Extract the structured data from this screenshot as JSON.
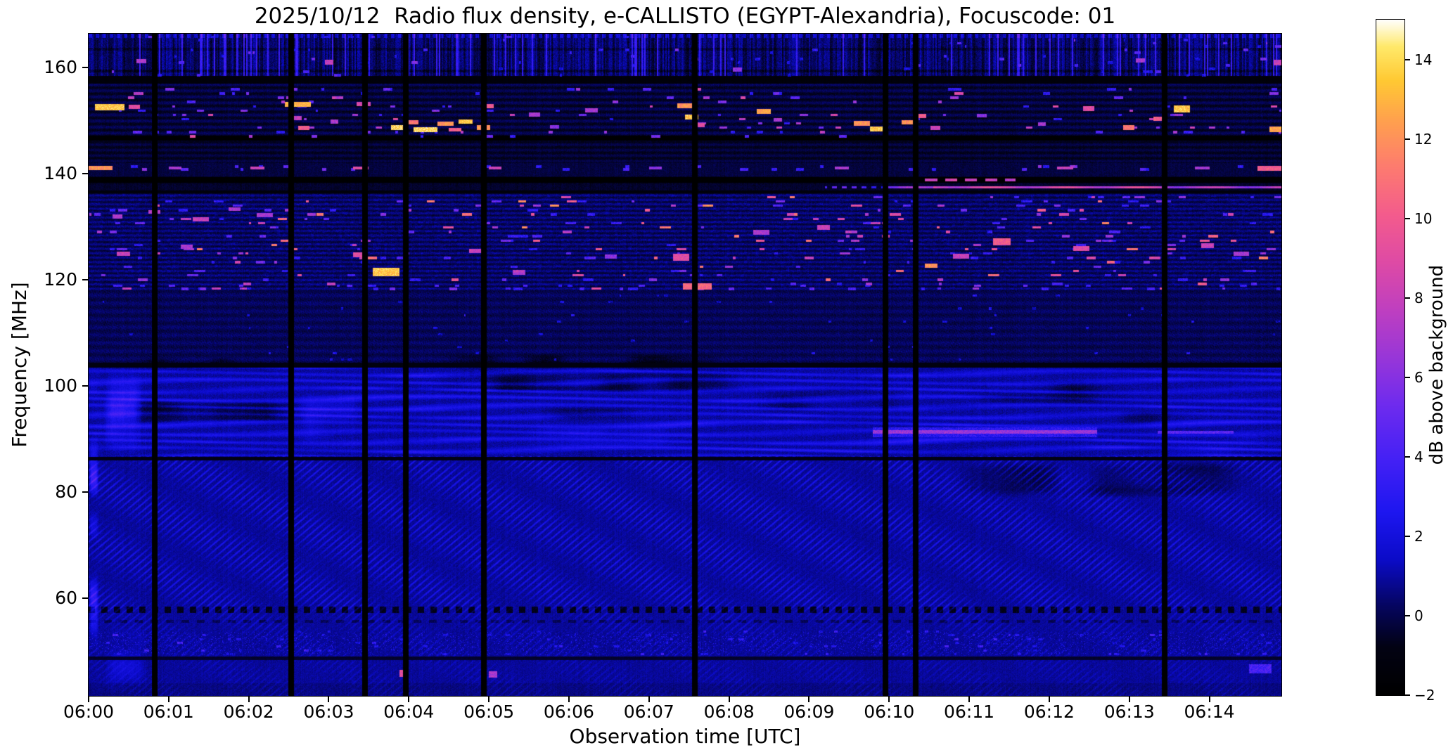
{
  "chart_data": {
    "type": "heatmap",
    "title": "2025/10/12  Radio flux density, e-CALLISTO (EGYPT-Alexandria), Focuscode: 01",
    "xlabel": "Observation time [UTC]",
    "ylabel": "Frequency [MHz]",
    "colorbar_label": "dB above background",
    "x_ticks": [
      "06:00",
      "06:01",
      "06:02",
      "06:03",
      "06:04",
      "06:05",
      "06:06",
      "06:07",
      "06:08",
      "06:09",
      "06:10",
      "06:11",
      "06:12",
      "06:13",
      "06:14"
    ],
    "x_range_minutes": [
      0,
      14.9
    ],
    "y_ticks": [
      160,
      140,
      120,
      100,
      80,
      60
    ],
    "y_range_mhz": [
      41.6,
      166.4
    ],
    "colorbar_ticks": [
      14,
      12,
      10,
      8,
      6,
      4,
      2,
      0,
      -2
    ],
    "color_range_db": [
      -2,
      15
    ],
    "colormap_stops": [
      [
        0.0,
        "#000000"
      ],
      [
        0.07,
        "#020213"
      ],
      [
        0.13,
        "#05055e"
      ],
      [
        0.2,
        "#0b0bc8"
      ],
      [
        0.27,
        "#1d16f0"
      ],
      [
        0.35,
        "#4521f5"
      ],
      [
        0.43,
        "#6f2bee"
      ],
      [
        0.5,
        "#9836d8"
      ],
      [
        0.57,
        "#bf3fc0"
      ],
      [
        0.64,
        "#de4aa5"
      ],
      [
        0.71,
        "#f35b8d"
      ],
      [
        0.78,
        "#fd7a70"
      ],
      [
        0.85,
        "#ffa04e"
      ],
      [
        0.91,
        "#ffc933"
      ],
      [
        0.96,
        "#ffe96a"
      ],
      [
        1.0,
        "#ffffff"
      ]
    ],
    "vertical_gaps_min": [
      0.83,
      2.53,
      3.45,
      3.96,
      4.94,
      7.57,
      9.95,
      10.33,
      13.44
    ],
    "gap_half_width_min": 0.035,
    "dark_lines": [
      [
        146.7,
        0.45,
        -2
      ],
      [
        138.8,
        0.55,
        -2
      ],
      [
        136.6,
        0.3,
        -1.4
      ],
      [
        103.9,
        0.45,
        -1.1
      ],
      [
        86.3,
        0.35,
        -1.0
      ],
      [
        48.7,
        0.3,
        -0.6
      ]
    ],
    "satellite_line": {
      "f": [
        137.2,
        137.65
      ],
      "segments": [
        [
          9.2,
          9.95,
          4,
          "dashed"
        ],
        [
          9.95,
          10.55,
          6,
          "solid"
        ],
        [
          10.55,
          13.5,
          8.2,
          "solid"
        ],
        [
          13.5,
          14.9,
          7,
          "solid"
        ]
      ]
    },
    "bursts": [
      [
        0.08,
        0.45,
        151.9,
        153.1,
        13.5
      ],
      [
        0.5,
        0.64,
        152.2,
        153.0,
        9
      ],
      [
        0.0,
        0.3,
        140.7,
        141.5,
        12
      ],
      [
        2.45,
        2.78,
        152.6,
        153.6,
        13
      ],
      [
        2.55,
        2.66,
        150.1,
        150.9,
        8
      ],
      [
        2.62,
        2.76,
        148.2,
        149.0,
        10
      ],
      [
        3.02,
        3.12,
        149.5,
        150.2,
        7
      ],
      [
        3.35,
        3.52,
        152.8,
        153.6,
        8.5
      ],
      [
        3.78,
        3.96,
        148.3,
        149.2,
        14
      ],
      [
        3.96,
        4.12,
        149.3,
        150.1,
        11
      ],
      [
        4.06,
        4.36,
        147.8,
        148.8,
        14
      ],
      [
        4.36,
        4.56,
        149.0,
        149.9,
        12
      ],
      [
        4.5,
        4.66,
        148.0,
        148.7,
        10
      ],
      [
        4.62,
        4.8,
        149.5,
        150.3,
        13.5
      ],
      [
        4.85,
        5.02,
        148.2,
        149.2,
        12
      ],
      [
        4.9,
        5.06,
        152.4,
        153.2,
        10
      ],
      [
        5.5,
        5.64,
        150.8,
        151.5,
        7
      ],
      [
        5.76,
        5.88,
        148.5,
        149.2,
        6
      ],
      [
        6.2,
        6.36,
        151.5,
        152.3,
        7
      ],
      [
        7.35,
        7.56,
        152.3,
        153.3,
        12
      ],
      [
        7.45,
        7.62,
        150.3,
        151.2,
        13.5
      ],
      [
        7.56,
        7.7,
        148.8,
        149.6,
        9
      ],
      [
        8.35,
        8.52,
        151.3,
        152.2,
        12.5
      ],
      [
        8.56,
        8.66,
        149.8,
        150.5,
        7
      ],
      [
        9.56,
        9.76,
        149.0,
        150.0,
        12
      ],
      [
        9.76,
        9.96,
        148.0,
        148.9,
        13.5
      ],
      [
        10.16,
        10.32,
        149.3,
        150.1,
        12
      ],
      [
        10.32,
        10.46,
        150.5,
        151.3,
        10
      ],
      [
        10.52,
        10.64,
        148.3,
        149.1,
        8
      ],
      [
        11.1,
        11.22,
        150.6,
        151.3,
        6
      ],
      [
        11.86,
        11.96,
        149.0,
        149.7,
        7
      ],
      [
        12.42,
        12.56,
        151.8,
        152.7,
        9
      ],
      [
        12.92,
        13.06,
        148.3,
        149.2,
        11
      ],
      [
        13.3,
        13.44,
        150.0,
        150.8,
        10
      ],
      [
        13.56,
        13.76,
        151.6,
        152.9,
        13.5
      ],
      [
        14.75,
        14.9,
        147.9,
        148.9,
        12.5
      ],
      [
        1.0,
        1.16,
        140.8,
        141.4,
        7
      ],
      [
        2.02,
        2.2,
        140.8,
        141.4,
        8
      ],
      [
        3.3,
        3.5,
        140.8,
        141.4,
        9
      ],
      [
        5.0,
        5.16,
        140.8,
        141.4,
        8
      ],
      [
        7.0,
        7.16,
        140.8,
        141.4,
        6
      ],
      [
        9.32,
        9.5,
        140.8,
        141.4,
        7
      ],
      [
        12.1,
        12.3,
        140.8,
        141.4,
        8
      ],
      [
        13.82,
        14.0,
        140.8,
        141.4,
        7
      ],
      [
        14.6,
        14.9,
        140.6,
        141.5,
        10
      ],
      [
        10.45,
        10.6,
        138.6,
        139.1,
        8
      ],
      [
        10.7,
        10.85,
        138.6,
        139.1,
        8.5
      ],
      [
        10.95,
        11.1,
        138.6,
        139.1,
        8
      ],
      [
        11.2,
        11.35,
        138.6,
        139.1,
        8
      ],
      [
        11.45,
        11.58,
        138.6,
        139.1,
        7.5
      ],
      [
        3.55,
        3.88,
        120.7,
        122.3,
        13.5
      ],
      [
        3.3,
        3.46,
        124.3,
        125.2,
        9
      ],
      [
        7.42,
        7.78,
        118.2,
        119.4,
        10.5
      ],
      [
        7.3,
        7.5,
        123.6,
        124.9,
        9
      ],
      [
        11.3,
        11.52,
        126.5,
        127.9,
        10
      ],
      [
        10.8,
        11.0,
        124.0,
        124.9,
        8
      ],
      [
        12.3,
        12.5,
        125.5,
        126.4,
        9
      ],
      [
        13.9,
        14.06,
        126.0,
        126.9,
        8
      ],
      [
        14.3,
        14.5,
        124.5,
        125.3,
        7
      ],
      [
        0.35,
        0.52,
        124.5,
        125.3,
        8
      ],
      [
        1.15,
        1.3,
        125.8,
        126.6,
        7
      ],
      [
        4.75,
        4.9,
        125.0,
        125.9,
        8
      ],
      [
        5.3,
        5.46,
        121.0,
        121.9,
        7
      ],
      [
        6.45,
        6.6,
        124.0,
        124.8,
        6
      ],
      [
        8.3,
        8.5,
        128.5,
        129.4,
        7
      ],
      [
        9.1,
        9.26,
        129.5,
        130.3,
        8
      ],
      [
        10.45,
        10.6,
        122.3,
        123.1,
        12
      ],
      [
        0.3,
        0.42,
        131.6,
        132.3,
        7
      ],
      [
        0.75,
        0.9,
        132.5,
        133.2,
        7.5
      ],
      [
        1.3,
        1.5,
        131.0,
        131.8,
        8
      ],
      [
        1.75,
        1.9,
        133.0,
        133.7,
        7
      ],
      [
        2.1,
        2.3,
        131.8,
        132.6,
        7
      ],
      [
        9.8,
        12.6,
        91.0,
        91.65,
        6.5
      ],
      [
        9.8,
        12.6,
        90.4,
        92.2,
        3
      ],
      [
        13.35,
        14.3,
        91.0,
        91.6,
        4.5
      ],
      [
        3.88,
        4.0,
        45.2,
        46.5,
        9
      ],
      [
        5.0,
        5.1,
        45.0,
        46.2,
        7
      ],
      [
        14.5,
        14.78,
        45.8,
        47.6,
        4
      ],
      [
        2.95,
        3.06,
        160.6,
        161.5,
        8
      ],
      [
        0.6,
        0.72,
        160.9,
        161.6,
        7
      ],
      [
        13.08,
        13.2,
        161.0,
        161.8,
        7
      ],
      [
        14.8,
        14.9,
        160.4,
        161.5,
        8
      ],
      [
        8.05,
        8.16,
        159.3,
        160.1,
        6
      ]
    ],
    "speckle_bands": [
      {
        "name": "airband",
        "t": [
          0,
          14.9
        ],
        "f": [
          118.4,
          135.8
        ],
        "rows": 0.82,
        "count": 320,
        "db": [
          3,
          12
        ],
        "w": [
          0.03,
          0.14
        ],
        "h": 0.45
      },
      {
        "name": "rfi-150",
        "t": [
          0,
          14.9
        ],
        "f": [
          147.1,
          155.9
        ],
        "rows": 0.8,
        "count": 150,
        "db": [
          3,
          9
        ],
        "w": [
          0.03,
          0.12
        ],
        "h": 0.5
      },
      {
        "name": "top-band",
        "t": [
          0,
          14.9
        ],
        "f": [
          158.6,
          165.9
        ],
        "rows": 0.6,
        "count": 90,
        "db": [
          2,
          6
        ],
        "w": [
          0.02,
          0.08
        ],
        "h": 0.5
      },
      {
        "name": "mid-quiet",
        "t": [
          0,
          14.9
        ],
        "f": [
          105,
          117
        ],
        "rows": 1.2,
        "count": 60,
        "db": [
          1.5,
          3.2
        ],
        "w": [
          0.02,
          0.06
        ],
        "h": 0.4
      },
      {
        "name": "low-52",
        "t": [
          0,
          14.9
        ],
        "f": [
          49.5,
          53.5
        ],
        "rows": 0.7,
        "count": 120,
        "db": [
          2,
          4
        ],
        "w": [
          0.02,
          0.07
        ],
        "h": 0.4
      },
      {
        "name": "row-118",
        "t": [
          0,
          14.9
        ],
        "f": [
          118.3,
          118.9
        ],
        "rows": 0.6,
        "count": 40,
        "db": [
          3,
          6
        ],
        "w": [
          0.04,
          0.12
        ],
        "h": 0.5
      },
      {
        "name": "row-141",
        "t": [
          0,
          14.9
        ],
        "f": [
          140.8,
          141.4
        ],
        "rows": 0.6,
        "count": 30,
        "db": [
          3,
          7
        ],
        "w": [
          0.04,
          0.1
        ],
        "h": 0.5
      }
    ],
    "dark_patches": [
      [
        0.4,
        2.7,
        92.5,
        97.5,
        1.8
      ],
      [
        4.3,
        8.2,
        98.5,
        103.4,
        1.5
      ],
      [
        10.8,
        14.85,
        79,
        86,
        1.5
      ],
      [
        8.3,
        10.3,
        95,
        99.5,
        1.2
      ],
      [
        4.4,
        7.9,
        103,
        106.2,
        1.2
      ],
      [
        0.2,
        1.9,
        103.2,
        105.6,
        1.0
      ],
      [
        5.6,
        7.4,
        93.5,
        96.2,
        1.3
      ],
      [
        11.0,
        13.2,
        96.5,
        101.2,
        1.1
      ],
      [
        12.6,
        14.4,
        92.5,
        95.5,
        0.9
      ]
    ],
    "bright_patches": [
      [
        0.18,
        0.68,
        87,
        103,
        1.9
      ],
      [
        2.6,
        3.4,
        88,
        99,
        0.9
      ],
      [
        9.7,
        10.45,
        87,
        100,
        0.9
      ],
      [
        0.0,
        0.12,
        42,
        103,
        2.6
      ],
      [
        5.3,
        7.6,
        88,
        93.5,
        0.8
      ],
      [
        13.3,
        14.9,
        86.8,
        92,
        0.7
      ],
      [
        0.15,
        0.75,
        42,
        55,
        1.0
      ]
    ]
  }
}
